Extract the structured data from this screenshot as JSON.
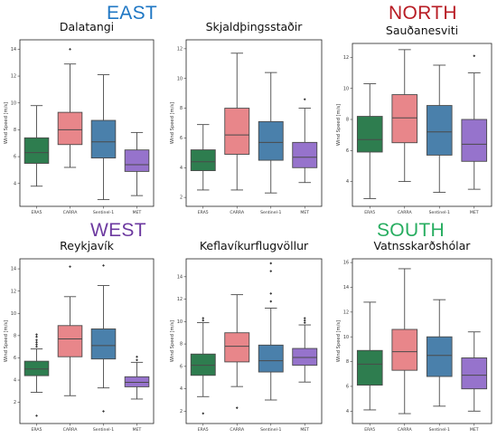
{
  "regions": [
    {
      "label": "EAST",
      "color": "#1f77c4"
    },
    {
      "label": "NORTH",
      "color": "#b81c24"
    },
    {
      "label": "WEST",
      "color": "#6d3aa0"
    },
    {
      "label": "SOUTH",
      "color": "#27ad60"
    }
  ],
  "colors": {
    "ERA5": "#2e7d4f",
    "CARRA": "#e8868a",
    "Sentinel-1": "#4a80ab",
    "MET": "#9673cc"
  },
  "chart_data": [
    {
      "type": "box",
      "title": "Dalatangi",
      "ylabel": "Wind Speed [m/s]",
      "yticks": [
        "4",
        "6",
        "8",
        "10",
        "12",
        "14"
      ],
      "categories": [
        "ERA5",
        "CARRA",
        "Sentinel-1",
        "MET"
      ],
      "ylim": [
        2.3,
        14.7
      ],
      "boxes": [
        {
          "name": "ERA5",
          "whislo": 3.8,
          "q1": 5.5,
          "med": 6.3,
          "q3": 7.4,
          "whishi": 9.8,
          "fliers": []
        },
        {
          "name": "CARRA",
          "whislo": 5.2,
          "q1": 6.9,
          "med": 8.0,
          "q3": 9.3,
          "whishi": 12.9,
          "fliers": [
            14.0
          ]
        },
        {
          "name": "Sentinel-1",
          "whislo": 2.8,
          "q1": 5.9,
          "med": 7.1,
          "q3": 8.7,
          "whishi": 12.1,
          "fliers": []
        },
        {
          "name": "MET",
          "whislo": 3.1,
          "q1": 4.9,
          "med": 5.4,
          "q3": 6.5,
          "whishi": 7.8,
          "fliers": []
        }
      ]
    },
    {
      "type": "box",
      "title": "Skjaldþingsstaðir",
      "ylabel": "Wind Speed [m/s]",
      "yticks": [
        "2",
        "4",
        "6",
        "8",
        "10",
        "12"
      ],
      "categories": [
        "ERA5",
        "CARRA",
        "Sentinel-1",
        "MET"
      ],
      "ylim": [
        1.4,
        12.6
      ],
      "boxes": [
        {
          "name": "ERA5",
          "whislo": 2.5,
          "q1": 3.8,
          "med": 4.4,
          "q3": 5.2,
          "whishi": 6.9,
          "fliers": []
        },
        {
          "name": "CARRA",
          "whislo": 2.5,
          "q1": 4.9,
          "med": 6.2,
          "q3": 8.0,
          "whishi": 11.7,
          "fliers": []
        },
        {
          "name": "Sentinel-1",
          "whislo": 2.3,
          "q1": 4.5,
          "med": 5.7,
          "q3": 7.1,
          "whishi": 10.4,
          "fliers": []
        },
        {
          "name": "MET",
          "whislo": 3.0,
          "q1": 4.0,
          "med": 4.7,
          "q3": 5.7,
          "whishi": 8.0,
          "fliers": [
            8.6
          ]
        }
      ]
    },
    {
      "type": "box",
      "title": "Sauðanesviti",
      "ylabel": "Wind Speed [m/s]",
      "yticks": [
        "4",
        "6",
        "8",
        "10",
        "12"
      ],
      "categories": [
        "ERA5",
        "CARRA",
        "Sentinel-1",
        "MET"
      ],
      "ylim": [
        2.4,
        12.9
      ],
      "boxes": [
        {
          "name": "ERA5",
          "whislo": 2.9,
          "q1": 5.9,
          "med": 6.7,
          "q3": 8.2,
          "whishi": 10.3,
          "fliers": []
        },
        {
          "name": "CARRA",
          "whislo": 4.0,
          "q1": 6.5,
          "med": 8.1,
          "q3": 9.6,
          "whishi": 12.5,
          "fliers": []
        },
        {
          "name": "Sentinel-1",
          "whislo": 3.3,
          "q1": 5.7,
          "med": 7.2,
          "q3": 8.9,
          "whishi": 11.5,
          "fliers": []
        },
        {
          "name": "MET",
          "whislo": 3.5,
          "q1": 5.3,
          "med": 6.4,
          "q3": 8.0,
          "whishi": 11.0,
          "fliers": [
            12.1
          ]
        }
      ]
    },
    {
      "type": "box",
      "title": "Reykjavík",
      "ylabel": "Wind Speed [m/s]",
      "yticks": [
        "2",
        "4",
        "6",
        "8",
        "10",
        "12",
        "14"
      ],
      "categories": [
        "ERA5",
        "CARRA",
        "Sentinel-1",
        "MET"
      ],
      "ylim": [
        0.1,
        14.9
      ],
      "boxes": [
        {
          "name": "ERA5",
          "whislo": 2.9,
          "q1": 4.4,
          "med": 5.0,
          "q3": 5.7,
          "whishi": 6.8,
          "fliers": [
            0.8,
            7.0,
            7.2,
            7.4,
            7.6,
            7.9,
            8.1
          ]
        },
        {
          "name": "CARRA",
          "whislo": 2.6,
          "q1": 6.1,
          "med": 7.7,
          "q3": 8.9,
          "whishi": 11.5,
          "fliers": [
            14.2
          ]
        },
        {
          "name": "Sentinel-1",
          "whislo": 3.3,
          "q1": 5.9,
          "med": 7.1,
          "q3": 8.6,
          "whishi": 12.5,
          "fliers": [
            1.2,
            14.3
          ]
        },
        {
          "name": "MET",
          "whislo": 2.3,
          "q1": 3.4,
          "med": 3.8,
          "q3": 4.3,
          "whishi": 5.6,
          "fliers": [
            5.8,
            6.1
          ]
        }
      ]
    },
    {
      "type": "box",
      "title": "Keflavíkurflugvöllur",
      "ylabel": "Wind Speed [m/s]",
      "yticks": [
        "2",
        "4",
        "6",
        "8",
        "10",
        "12",
        "14"
      ],
      "categories": [
        "ERA5",
        "CARRA",
        "Sentinel-1",
        "MET"
      ],
      "ylim": [
        0.9,
        15.6
      ],
      "boxes": [
        {
          "name": "ERA5",
          "whislo": 3.3,
          "q1": 5.2,
          "med": 6.1,
          "q3": 7.1,
          "whishi": 9.9,
          "fliers": [
            1.8,
            10.1,
            10.3
          ]
        },
        {
          "name": "CARRA",
          "whislo": 4.2,
          "q1": 6.4,
          "med": 7.8,
          "q3": 9.0,
          "whishi": 12.4,
          "fliers": [
            2.3
          ]
        },
        {
          "name": "Sentinel-1",
          "whislo": 3.0,
          "q1": 5.5,
          "med": 6.5,
          "q3": 7.9,
          "whishi": 11.2,
          "fliers": [
            11.8,
            12.5,
            14.5,
            15.2
          ]
        },
        {
          "name": "MET",
          "whislo": 4.6,
          "q1": 6.1,
          "med": 6.8,
          "q3": 7.6,
          "whishi": 9.7,
          "fliers": [
            9.9,
            10.1,
            10.3
          ]
        }
      ]
    },
    {
      "type": "box",
      "title": "Vatnsskarðshólar",
      "ylabel": "Wind Speed [m/s]",
      "yticks": [
        "4",
        "6",
        "8",
        "10",
        "12",
        "14",
        "16"
      ],
      "categories": [
        "ERA5",
        "CARRA",
        "Sentinel-1",
        "MET"
      ],
      "ylim": [
        3.0,
        16.3
      ],
      "boxes": [
        {
          "name": "ERA5",
          "whislo": 4.1,
          "q1": 6.1,
          "med": 7.8,
          "q3": 8.9,
          "whishi": 12.8,
          "fliers": []
        },
        {
          "name": "CARRA",
          "whislo": 3.8,
          "q1": 7.3,
          "med": 8.8,
          "q3": 10.6,
          "whishi": 15.5,
          "fliers": []
        },
        {
          "name": "Sentinel-1",
          "whislo": 4.4,
          "q1": 6.8,
          "med": 8.5,
          "q3": 10.0,
          "whishi": 13.0,
          "fliers": []
        },
        {
          "name": "MET",
          "whislo": 4.0,
          "q1": 5.8,
          "med": 6.9,
          "q3": 8.3,
          "whishi": 10.4,
          "fliers": []
        }
      ]
    }
  ]
}
